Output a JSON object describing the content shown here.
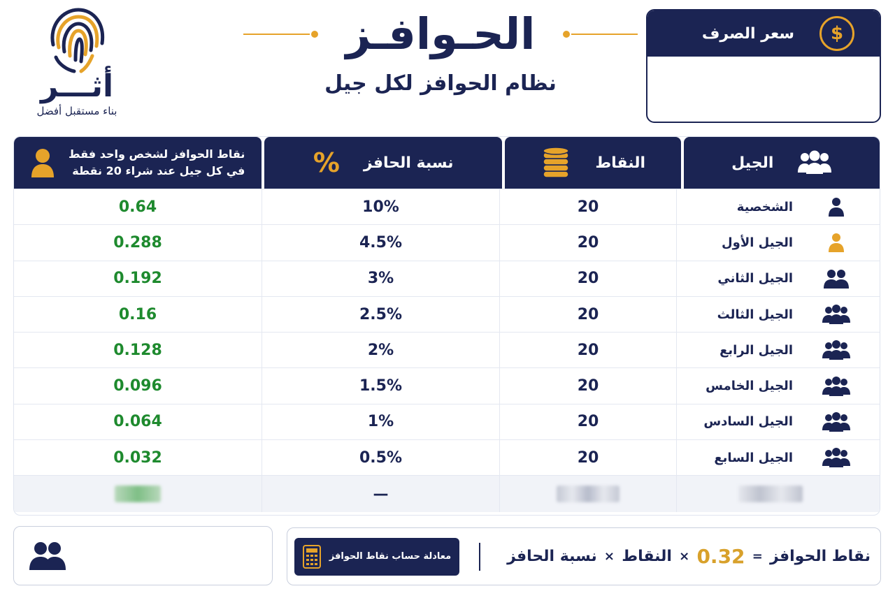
{
  "logo": {
    "word": "أثـــر",
    "tagline": "بناء مستقبل أفضل"
  },
  "header": {
    "title": "الحـوافـز",
    "subtitle": "نظام الحوافز لكل جيل"
  },
  "exchange": {
    "title": "سعر الصرف",
    "icon": "dollar-exchange-icon"
  },
  "table": {
    "headers": {
      "generation": "الجيل",
      "points": "النقاط",
      "rate": "نسبة الحافز",
      "incentive_line1": "نقاط الحوافز لشخص واحد فقط",
      "incentive_line2": "في كل جيل عند شراء 20 نقطة"
    },
    "rows": [
      {
        "generation": "الشخصية",
        "points": "20",
        "rate": "10%",
        "incentive": "0.64",
        "icon": "person-icon"
      },
      {
        "generation": "الجيل الأول",
        "points": "20",
        "rate": "4.5%",
        "incentive": "0.288",
        "icon": "person-gold-icon"
      },
      {
        "generation": "الجيل الثاني",
        "points": "20",
        "rate": "3%",
        "incentive": "0.192",
        "icon": "two-people-icon"
      },
      {
        "generation": "الجيل الثالث",
        "points": "20",
        "rate": "2.5%",
        "incentive": "0.16",
        "icon": "group-icon"
      },
      {
        "generation": "الجيل الرابع",
        "points": "20",
        "rate": "2%",
        "incentive": "0.128",
        "icon": "group-icon"
      },
      {
        "generation": "الجيل الخامس",
        "points": "20",
        "rate": "1.5%",
        "incentive": "0.096",
        "icon": "group-icon"
      },
      {
        "generation": "الجيل السادس",
        "points": "20",
        "rate": "1%",
        "incentive": "0.064",
        "icon": "group-icon"
      },
      {
        "generation": "الجيل السابع",
        "points": "20",
        "rate": "0.5%",
        "incentive": "0.032",
        "icon": "group-icon"
      }
    ],
    "blurred_rate": "—"
  },
  "footer": {
    "calc_button": "معادلة حساب نقاط الحوافز",
    "formula": {
      "result": "نقاط الحوافز",
      "eq": "=",
      "value": "0.32",
      "times": "×",
      "points": "النقاط",
      "rate": "نسبة الحافز"
    }
  },
  "colors": {
    "navy": "#1b2453",
    "gold": "#e6a32a",
    "green": "#1e8a2e"
  }
}
